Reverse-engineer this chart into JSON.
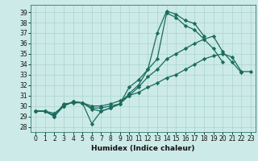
{
  "xlabel": "Humidex (Indice chaleur)",
  "background_color": "#cceae7",
  "grid_color": "#aad4d0",
  "line_color": "#1a6b5e",
  "xlim": [
    -0.5,
    23.5
  ],
  "ylim": [
    27.5,
    39.7
  ],
  "yticks": [
    28,
    29,
    30,
    31,
    32,
    33,
    34,
    35,
    36,
    37,
    38,
    39
  ],
  "xticks": [
    0,
    1,
    2,
    3,
    4,
    5,
    6,
    7,
    8,
    9,
    10,
    11,
    12,
    13,
    14,
    15,
    16,
    17,
    18,
    19,
    20,
    21,
    22,
    23
  ],
  "lines": [
    {
      "x": [
        0,
        1,
        2,
        3,
        4,
        5,
        6,
        7,
        8,
        9,
        10,
        11,
        12,
        13,
        14,
        15,
        16,
        17,
        18
      ],
      "y": [
        29.5,
        29.5,
        29.0,
        30.2,
        30.3,
        30.3,
        28.3,
        29.5,
        29.8,
        30.2,
        31.8,
        32.5,
        33.5,
        37.0,
        39.1,
        38.8,
        38.2,
        37.9,
        36.7
      ]
    },
    {
      "x": [
        0,
        1,
        2,
        3,
        4,
        5,
        6,
        7,
        8,
        9,
        10,
        11,
        12,
        13,
        14,
        15,
        16,
        17,
        18,
        19,
        20
      ],
      "y": [
        29.5,
        29.5,
        29.0,
        30.0,
        30.4,
        30.3,
        29.7,
        29.5,
        29.8,
        30.2,
        31.2,
        32.0,
        33.5,
        34.5,
        38.9,
        38.5,
        37.7,
        37.3,
        36.4,
        35.5,
        34.2
      ]
    },
    {
      "x": [
        0,
        1,
        2,
        3,
        4,
        5,
        6,
        7,
        8,
        9,
        10,
        11,
        12,
        13,
        14,
        15,
        16,
        17,
        18,
        19,
        20,
        21,
        22
      ],
      "y": [
        29.5,
        29.5,
        29.1,
        30.0,
        30.4,
        30.3,
        29.8,
        29.8,
        30.0,
        30.2,
        31.0,
        31.8,
        32.8,
        33.5,
        34.5,
        35.0,
        35.5,
        36.0,
        36.4,
        36.7,
        35.2,
        34.2,
        33.2
      ]
    },
    {
      "x": [
        0,
        1,
        2,
        3,
        4,
        5,
        6,
        7,
        8,
        9,
        10,
        11,
        12,
        13,
        14,
        15,
        16,
        17,
        18,
        19,
        20,
        21,
        22,
        23
      ],
      "y": [
        29.5,
        29.5,
        29.3,
        30.0,
        30.4,
        30.3,
        30.0,
        30.0,
        30.2,
        30.5,
        31.0,
        31.3,
        31.8,
        32.2,
        32.7,
        33.0,
        33.5,
        34.0,
        34.5,
        34.8,
        35.0,
        34.7,
        33.3,
        33.3
      ]
    }
  ]
}
